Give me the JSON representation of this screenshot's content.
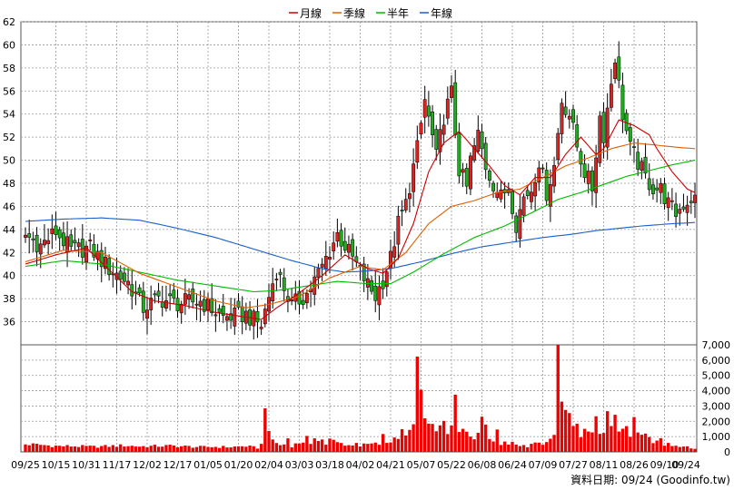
{
  "chart_data": {
    "type": "candlestick",
    "legend": [
      {
        "label": "月線",
        "color": "#cc0000"
      },
      {
        "label": "季線",
        "color": "#e06000"
      },
      {
        "label": "半年",
        "color": "#00bb00"
      },
      {
        "label": "年線",
        "color": "#1a5fcc"
      }
    ],
    "x_ticks": [
      "09/25",
      "10/15",
      "10/31",
      "11/17",
      "12/02",
      "12/17",
      "01/05",
      "01/20",
      "02/04",
      "03/03",
      "03/18",
      "04/02",
      "04/21",
      "05/07",
      "05/22",
      "06/08",
      "06/24",
      "07/09",
      "07/27",
      "08/11",
      "08/26",
      "09/10",
      "09/24"
    ],
    "price_axis": {
      "ylim": [
        34,
        62
      ],
      "ticks": [
        36,
        38,
        40,
        42,
        44,
        46,
        48,
        50,
        52,
        54,
        56,
        58,
        60,
        62
      ]
    },
    "volume_axis": {
      "ylim": [
        0,
        7000
      ],
      "ticks": [
        "0",
        "1,000",
        "2,000",
        "3,000",
        "4,000",
        "5,000",
        "6,000",
        "7,000"
      ]
    },
    "close_path": [
      [
        0,
        43.5
      ],
      [
        4,
        42.6
      ],
      [
        8,
        43.8
      ],
      [
        12,
        42.2
      ],
      [
        17,
        42.4
      ],
      [
        22,
        40.6
      ],
      [
        27,
        39.4
      ],
      [
        31,
        37.2
      ],
      [
        35,
        38.0
      ],
      [
        40,
        37.6
      ],
      [
        46,
        37.8
      ],
      [
        52,
        36.4
      ],
      [
        58,
        36.6
      ],
      [
        62,
        35.7
      ],
      [
        64,
        38.2
      ],
      [
        66,
        40.5
      ],
      [
        70,
        37.4
      ],
      [
        74,
        38.4
      ],
      [
        78,
        40.8
      ],
      [
        82,
        43.6
      ],
      [
        86,
        41.5
      ],
      [
        90,
        39.2
      ],
      [
        92,
        38.2
      ],
      [
        94,
        39.6
      ],
      [
        96,
        41.5
      ],
      [
        98,
        44.5
      ],
      [
        100,
        46.2
      ],
      [
        103,
        51.0
      ],
      [
        105,
        55.2
      ],
      [
        107,
        52.0
      ],
      [
        108,
        50.2
      ],
      [
        110,
        53.8
      ],
      [
        112,
        55.8
      ],
      [
        114,
        49.2
      ],
      [
        116,
        47.6
      ],
      [
        117,
        50.0
      ],
      [
        119,
        52.2
      ],
      [
        121,
        49.5
      ],
      [
        123,
        48.0
      ],
      [
        125,
        46.8
      ],
      [
        127,
        47.8
      ],
      [
        129,
        44.5
      ],
      [
        131,
        46.8
      ],
      [
        133,
        47.5
      ],
      [
        135,
        50.0
      ],
      [
        137,
        47.2
      ],
      [
        139,
        49.5
      ],
      [
        141,
        55.2
      ],
      [
        143,
        54.0
      ],
      [
        145,
        51.2
      ],
      [
        147,
        49.0
      ],
      [
        149,
        47.6
      ],
      [
        151,
        53.8
      ],
      [
        152,
        52.2
      ],
      [
        154,
        56.8
      ],
      [
        155,
        59.0
      ],
      [
        157,
        54.0
      ],
      [
        159,
        51.0
      ],
      [
        161,
        49.8
      ],
      [
        163,
        48.5
      ],
      [
        165,
        47.6
      ],
      [
        167,
        47.5
      ],
      [
        169,
        46.2
      ],
      [
        171,
        45.4
      ],
      [
        173,
        46.2
      ],
      [
        175,
        46.7
      ],
      [
        176,
        46.6
      ]
    ],
    "ma_month": [
      [
        0,
        41.0
      ],
      [
        8,
        41.8
      ],
      [
        16,
        42.4
      ],
      [
        22,
        40.5
      ],
      [
        28,
        38.6
      ],
      [
        34,
        37.8
      ],
      [
        42,
        37.4
      ],
      [
        50,
        36.8
      ],
      [
        58,
        36.4
      ],
      [
        62,
        36.2
      ],
      [
        66,
        37.2
      ],
      [
        72,
        38.5
      ],
      [
        78,
        40.0
      ],
      [
        84,
        41.8
      ],
      [
        90,
        40.6
      ],
      [
        94,
        40.2
      ],
      [
        98,
        41.5
      ],
      [
        102,
        44.5
      ],
      [
        106,
        49.0
      ],
      [
        110,
        51.5
      ],
      [
        114,
        52.5
      ],
      [
        118,
        51.0
      ],
      [
        122,
        49.5
      ],
      [
        126,
        47.8
      ],
      [
        130,
        47.0
      ],
      [
        134,
        48.5
      ],
      [
        138,
        48.5
      ],
      [
        142,
        50.5
      ],
      [
        146,
        52.0
      ],
      [
        150,
        50.5
      ],
      [
        152,
        51.0
      ],
      [
        156,
        53.5
      ],
      [
        160,
        53.0
      ],
      [
        164,
        52.2
      ],
      [
        166,
        51.0
      ],
      [
        170,
        49.0
      ],
      [
        174,
        47.5
      ],
      [
        176,
        47.2
      ]
    ],
    "ma_quarter": [
      [
        0,
        41.2
      ],
      [
        10,
        42.2
      ],
      [
        20,
        42.0
      ],
      [
        30,
        40.2
      ],
      [
        40,
        39.0
      ],
      [
        50,
        37.8
      ],
      [
        58,
        37.2
      ],
      [
        64,
        37.5
      ],
      [
        72,
        38.2
      ],
      [
        80,
        39.8
      ],
      [
        88,
        40.8
      ],
      [
        94,
        40.5
      ],
      [
        100,
        42.0
      ],
      [
        106,
        44.5
      ],
      [
        112,
        46.0
      ],
      [
        118,
        46.5
      ],
      [
        124,
        47.2
      ],
      [
        130,
        47.5
      ],
      [
        136,
        48.5
      ],
      [
        142,
        49.5
      ],
      [
        148,
        50.2
      ],
      [
        154,
        51.0
      ],
      [
        160,
        51.5
      ],
      [
        166,
        51.3
      ],
      [
        172,
        51.1
      ],
      [
        176,
        51.0
      ]
    ],
    "ma_half": [
      [
        0,
        40.8
      ],
      [
        10,
        41.3
      ],
      [
        20,
        41.0
      ],
      [
        30,
        40.3
      ],
      [
        40,
        39.6
      ],
      [
        50,
        39.1
      ],
      [
        60,
        38.6
      ],
      [
        66,
        38.7
      ],
      [
        74,
        39.1
      ],
      [
        82,
        39.5
      ],
      [
        90,
        39.3
      ],
      [
        96,
        39.3
      ],
      [
        102,
        40.3
      ],
      [
        110,
        41.9
      ],
      [
        118,
        43.3
      ],
      [
        126,
        44.3
      ],
      [
        134,
        45.6
      ],
      [
        140,
        46.6
      ],
      [
        146,
        47.2
      ],
      [
        152,
        47.9
      ],
      [
        158,
        48.6
      ],
      [
        164,
        49.1
      ],
      [
        170,
        49.6
      ],
      [
        176,
        50.0
      ]
    ],
    "ma_year": [
      [
        0,
        44.7
      ],
      [
        10,
        44.9
      ],
      [
        20,
        45.0
      ],
      [
        30,
        44.8
      ],
      [
        40,
        44.1
      ],
      [
        50,
        43.3
      ],
      [
        60,
        42.3
      ],
      [
        70,
        41.3
      ],
      [
        78,
        40.6
      ],
      [
        84,
        40.3
      ],
      [
        90,
        40.4
      ],
      [
        96,
        40.6
      ],
      [
        104,
        41.2
      ],
      [
        112,
        41.9
      ],
      [
        120,
        42.5
      ],
      [
        128,
        42.9
      ],
      [
        136,
        43.3
      ],
      [
        144,
        43.6
      ],
      [
        150,
        43.9
      ],
      [
        156,
        44.1
      ],
      [
        162,
        44.3
      ],
      [
        170,
        44.5
      ],
      [
        176,
        44.6
      ]
    ],
    "volume_spikes": [
      [
        0,
        500
      ],
      [
        2,
        480
      ],
      [
        4,
        460
      ],
      [
        6,
        420
      ],
      [
        9,
        380
      ],
      [
        12,
        380
      ],
      [
        15,
        360
      ],
      [
        18,
        340
      ],
      [
        22,
        380
      ],
      [
        26,
        420
      ],
      [
        30,
        360
      ],
      [
        34,
        380
      ],
      [
        38,
        400
      ],
      [
        42,
        360
      ],
      [
        46,
        320
      ],
      [
        50,
        330
      ],
      [
        54,
        320
      ],
      [
        58,
        380
      ],
      [
        61,
        260
      ],
      [
        62,
        480
      ],
      [
        63,
        3600
      ],
      [
        64,
        1100
      ],
      [
        65,
        800
      ],
      [
        67,
        420
      ],
      [
        68,
        500
      ],
      [
        69,
        900
      ],
      [
        70,
        400
      ],
      [
        72,
        600
      ],
      [
        73,
        700
      ],
      [
        74,
        900
      ],
      [
        75,
        420
      ],
      [
        76,
        1000
      ],
      [
        78,
        800
      ],
      [
        79,
        500
      ],
      [
        80,
        800
      ],
      [
        81,
        700
      ],
      [
        82,
        600
      ],
      [
        84,
        500
      ],
      [
        86,
        400
      ],
      [
        87,
        700
      ],
      [
        88,
        400
      ],
      [
        90,
        500
      ],
      [
        92,
        520
      ],
      [
        93,
        500
      ],
      [
        94,
        1000
      ],
      [
        95,
        600
      ],
      [
        96,
        700
      ],
      [
        98,
        1100
      ],
      [
        99,
        1600
      ],
      [
        100,
        900
      ],
      [
        101,
        1700
      ],
      [
        102,
        1500
      ],
      [
        103,
        5800
      ],
      [
        104,
        3600
      ],
      [
        105,
        2800
      ],
      [
        106,
        1700
      ],
      [
        107,
        1500
      ],
      [
        108,
        1300
      ],
      [
        109,
        1700
      ],
      [
        110,
        1900
      ],
      [
        111,
        1100
      ],
      [
        112,
        1400
      ],
      [
        113,
        3100
      ],
      [
        114,
        1700
      ],
      [
        115,
        1300
      ],
      [
        116,
        1100
      ],
      [
        117,
        1100
      ],
      [
        118,
        1000
      ],
      [
        119,
        1000
      ],
      [
        120,
        2200
      ],
      [
        121,
        1600
      ],
      [
        122,
        800
      ],
      [
        123,
        600
      ],
      [
        124,
        1400
      ],
      [
        125,
        500
      ],
      [
        126,
        800
      ],
      [
        127,
        600
      ],
      [
        128,
        700
      ],
      [
        129,
        400
      ],
      [
        130,
        400
      ],
      [
        131,
        500
      ],
      [
        132,
        400
      ],
      [
        133,
        700
      ],
      [
        134,
        600
      ],
      [
        135,
        600
      ],
      [
        136,
        500
      ],
      [
        137,
        700
      ],
      [
        138,
        1100
      ],
      [
        139,
        1400
      ],
      [
        140,
        6900
      ],
      [
        141,
        4200
      ],
      [
        142,
        3200
      ],
      [
        143,
        2500
      ],
      [
        144,
        1700
      ],
      [
        145,
        2000
      ],
      [
        146,
        1200
      ],
      [
        147,
        1600
      ],
      [
        148,
        1100
      ],
      [
        149,
        1300
      ],
      [
        150,
        2700
      ],
      [
        151,
        1400
      ],
      [
        152,
        1000
      ],
      [
        153,
        2900
      ],
      [
        154,
        2000
      ],
      [
        155,
        2400
      ],
      [
        156,
        1700
      ],
      [
        157,
        1500
      ],
      [
        158,
        1800
      ],
      [
        159,
        1200
      ],
      [
        160,
        2000
      ],
      [
        161,
        1500
      ],
      [
        162,
        1100
      ],
      [
        163,
        1000
      ],
      [
        164,
        800
      ],
      [
        165,
        700
      ],
      [
        166,
        600
      ],
      [
        167,
        800
      ],
      [
        168,
        500
      ],
      [
        169,
        700
      ],
      [
        170,
        400
      ],
      [
        171,
        350
      ],
      [
        172,
        400
      ],
      [
        173,
        300
      ],
      [
        174,
        300
      ],
      [
        175,
        250
      ],
      [
        176,
        200
      ]
    ],
    "n_days": 177
  },
  "footer": "資料日期: 09/24 (Goodinfo.tw)",
  "colors": {
    "up": "#dd2222",
    "down": "#22aa22",
    "volume": "#ee0000",
    "grid": "#999999"
  }
}
